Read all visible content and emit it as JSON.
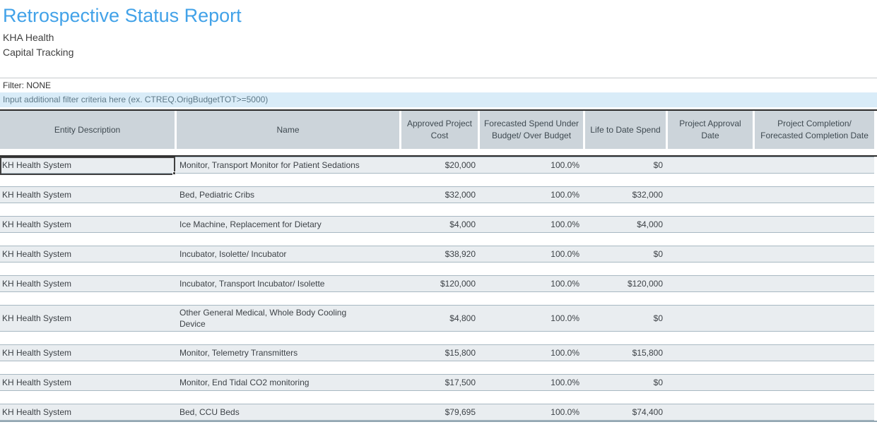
{
  "page": {
    "title": "Retrospective Status Report",
    "organization": "KHA Health",
    "report_type": "Capital Tracking",
    "filter_status": "Filter: NONE",
    "filter_placeholder": "Input additional filter criteria here (ex. CTREQ.OrigBudgetTOT>=5000)"
  },
  "colors": {
    "title_blue": "#42a2e8",
    "header_bg": "#ccd4da",
    "row_bg": "#e9edf0",
    "filter_hint_bg": "#d9ecf8",
    "selection_border": "#404040",
    "heavy_rule": "#2b2b2b"
  },
  "table": {
    "columns": [
      {
        "label": "Entity Description",
        "align": "left"
      },
      {
        "label": "Name",
        "align": "left"
      },
      {
        "label": "Approved Project Cost",
        "align": "right"
      },
      {
        "label": "Forecasted Spend Under Budget/ Over Budget",
        "align": "right"
      },
      {
        "label": "Life to Date Spend",
        "align": "right"
      },
      {
        "label": "Project Approval Date",
        "align": "center"
      },
      {
        "label": "Project Completion/ Forecasted Completion Date",
        "align": "center"
      }
    ],
    "rows": [
      {
        "entity": "KH Health System",
        "name": "Monitor, Transport Monitor for Patient Sedations",
        "approved_cost": "$20,000",
        "forecast_pct": "100.0%",
        "life_to_date_spend": "$0",
        "approval_date": "",
        "completion_date": "",
        "selected": true,
        "wrap": false
      },
      {
        "entity": "KH Health System",
        "name": "Bed, Pediatric Cribs",
        "approved_cost": "$32,000",
        "forecast_pct": "100.0%",
        "life_to_date_spend": "$32,000",
        "approval_date": "",
        "completion_date": "",
        "selected": false,
        "wrap": false
      },
      {
        "entity": "KH Health System",
        "name": "Ice Machine, Replacement for Dietary",
        "approved_cost": "$4,000",
        "forecast_pct": "100.0%",
        "life_to_date_spend": "$4,000",
        "approval_date": "",
        "completion_date": "",
        "selected": false,
        "wrap": false
      },
      {
        "entity": "KH Health System",
        "name": "Incubator, Isolette/ Incubator",
        "approved_cost": "$38,920",
        "forecast_pct": "100.0%",
        "life_to_date_spend": "$0",
        "approval_date": "",
        "completion_date": "",
        "selected": false,
        "wrap": false
      },
      {
        "entity": "KH Health System",
        "name": "Incubator, Transport Incubator/ Isolette",
        "approved_cost": "$120,000",
        "forecast_pct": "100.0%",
        "life_to_date_spend": "$120,000",
        "approval_date": "",
        "completion_date": "",
        "selected": false,
        "wrap": false
      },
      {
        "entity": "KH Health System",
        "name": "Other General Medical, Whole Body Cooling Device",
        "approved_cost": "$4,800",
        "forecast_pct": "100.0%",
        "life_to_date_spend": "$0",
        "approval_date": "",
        "completion_date": "",
        "selected": false,
        "wrap": true
      },
      {
        "entity": "KH Health System",
        "name": "Monitor, Telemetry Transmitters",
        "approved_cost": "$15,800",
        "forecast_pct": "100.0%",
        "life_to_date_spend": "$15,800",
        "approval_date": "",
        "completion_date": "",
        "selected": false,
        "wrap": false
      },
      {
        "entity": "KH Health System",
        "name": "Monitor, End Tidal CO2 monitoring",
        "approved_cost": "$17,500",
        "forecast_pct": "100.0%",
        "life_to_date_spend": "$0",
        "approval_date": "",
        "completion_date": "",
        "selected": false,
        "wrap": false
      },
      {
        "entity": "KH Health System",
        "name": "Bed, CCU Beds",
        "approved_cost": "$79,695",
        "forecast_pct": "100.0%",
        "life_to_date_spend": "$74,400",
        "approval_date": "",
        "completion_date": "",
        "selected": false,
        "wrap": false
      }
    ]
  }
}
